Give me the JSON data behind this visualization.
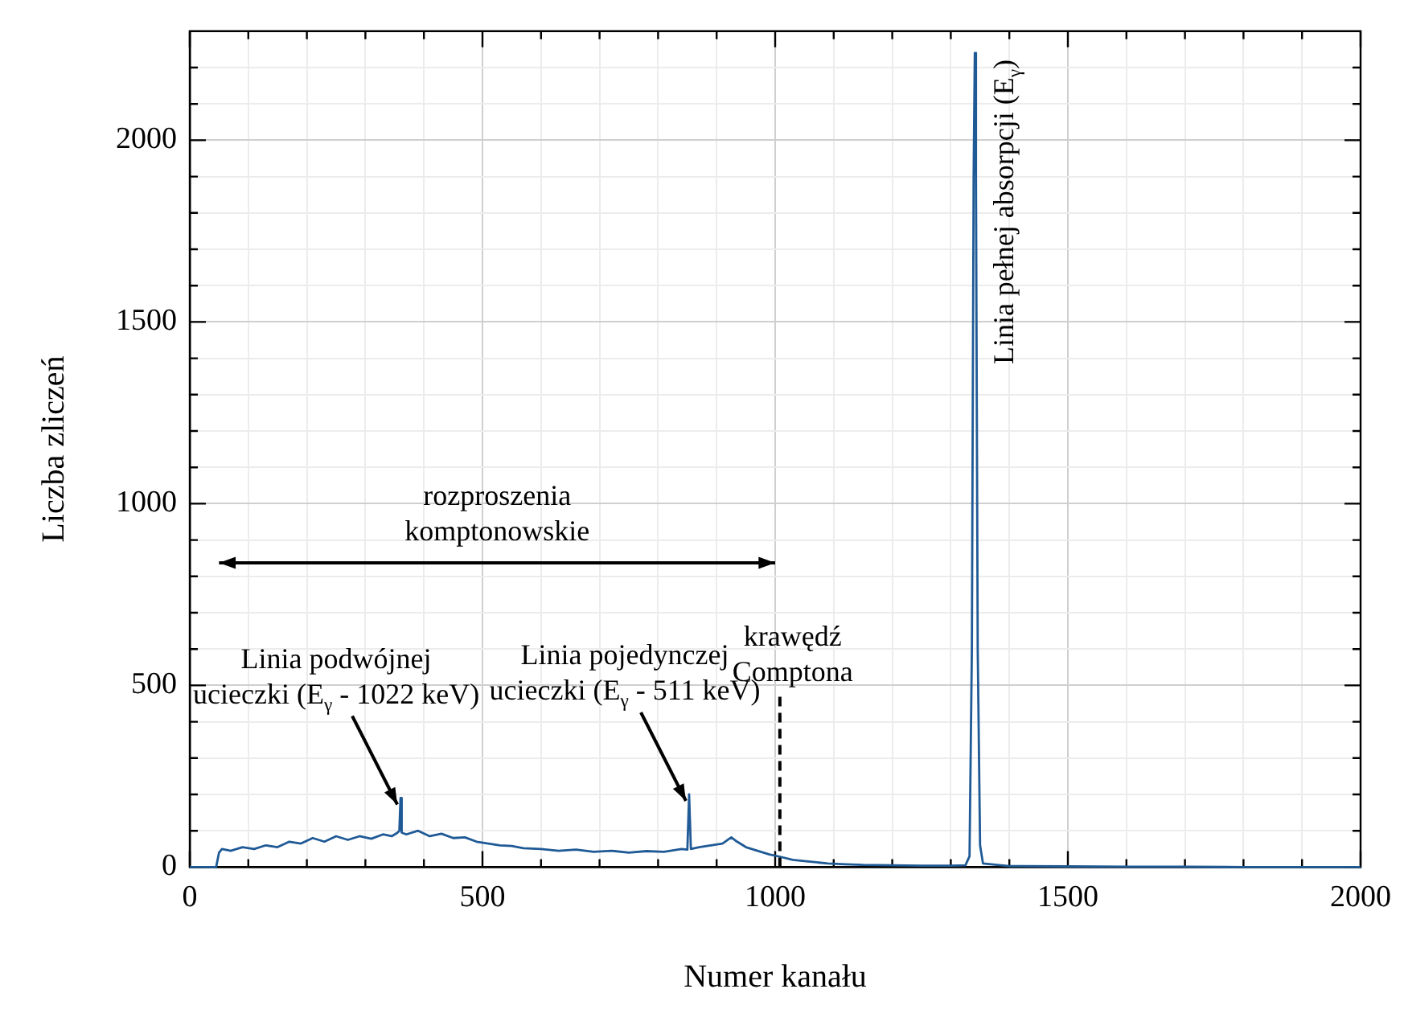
{
  "chart_data": {
    "type": "line",
    "xlabel": "Numer kanału",
    "ylabel": "Liczba zliczeń",
    "x": [
      0,
      45,
      50,
      55,
      70,
      90,
      110,
      130,
      150,
      170,
      190,
      210,
      230,
      250,
      270,
      290,
      310,
      330,
      345,
      355,
      358,
      360,
      362,
      370,
      390,
      410,
      430,
      450,
      470,
      490,
      510,
      530,
      550,
      570,
      600,
      630,
      660,
      690,
      720,
      750,
      780,
      810,
      840,
      850,
      853,
      856,
      870,
      890,
      910,
      925,
      935,
      950,
      970,
      990,
      1010,
      1030,
      1060,
      1090,
      1120,
      1150,
      1200,
      1250,
      1300,
      1325,
      1332,
      1336,
      1339,
      1341,
      1343,
      1346,
      1350,
      1355,
      1400,
      1500,
      1600,
      1700,
      1800,
      2000
    ],
    "series": [
      {
        "color": "#1f5a96",
        "values": [
          0,
          0,
          40,
          50,
          45,
          55,
          50,
          60,
          55,
          70,
          65,
          80,
          70,
          85,
          75,
          85,
          78,
          90,
          85,
          95,
          100,
          190,
          95,
          90,
          100,
          85,
          92,
          80,
          82,
          70,
          65,
          60,
          58,
          52,
          50,
          45,
          48,
          42,
          45,
          40,
          44,
          42,
          50,
          48,
          200,
          50,
          55,
          60,
          65,
          82,
          70,
          55,
          45,
          35,
          28,
          20,
          15,
          10,
          8,
          6,
          5,
          4,
          4,
          5,
          30,
          600,
          1900,
          2240,
          1900,
          600,
          60,
          10,
          3,
          2,
          1,
          1,
          0,
          0
        ]
      }
    ],
    "xlim": [
      0,
      2000
    ],
    "ylim": [
      0,
      2300
    ],
    "xticks": [
      0,
      {
        "value": 100,
        "label": null
      },
      {
        "value": 200,
        "label": null
      },
      {
        "value": 300,
        "label": null
      },
      {
        "value": 400,
        "label": null
      },
      500,
      {
        "value": 600,
        "label": null
      },
      {
        "value": 700,
        "label": null
      },
      {
        "value": 800,
        "label": null
      },
      {
        "value": 900,
        "label": null
      },
      1000,
      {
        "value": 1100,
        "label": null
      },
      {
        "value": 1200,
        "label": null
      },
      {
        "value": 1300,
        "label": null
      },
      {
        "value": 1400,
        "label": null
      },
      1500,
      {
        "value": 1600,
        "label": null
      },
      {
        "value": 1700,
        "label": null
      },
      {
        "value": 1800,
        "label": null
      },
      {
        "value": 1900,
        "label": null
      },
      2000
    ],
    "yticks": [
      0,
      {
        "value": 100,
        "label": null
      },
      {
        "value": 200,
        "label": null
      },
      {
        "value": 300,
        "label": null
      },
      {
        "value": 400,
        "label": null
      },
      500,
      {
        "value": 600,
        "label": null
      },
      {
        "value": 700,
        "label": null
      },
      {
        "value": 800,
        "label": null
      },
      {
        "value": 900,
        "label": null
      },
      1000,
      {
        "value": 1100,
        "label": null
      },
      {
        "value": 1200,
        "label": null
      },
      {
        "value": 1300,
        "label": null
      },
      {
        "value": 1400,
        "label": null
      },
      1500,
      {
        "value": 1600,
        "label": null
      },
      {
        "value": 1700,
        "label": null
      },
      {
        "value": 1800,
        "label": null
      },
      {
        "value": 1900,
        "label": null
      },
      2000,
      {
        "value": 2100,
        "label": null
      },
      {
        "value": 2200,
        "label": null
      }
    ],
    "grid": true,
    "legend": false,
    "marker": "none",
    "line_style": "solid",
    "ref_lines": [
      {
        "axis": "x",
        "value": 1008,
        "label": "krawędź\nComptona",
        "line_style": "dashed",
        "color": "#000000"
      }
    ],
    "annotations": [
      "rozproszenia\nkomptonowskie",
      {
        "text": "Linia podwójnej\nucieczki (E$_{γ}$ - 1022 keV)",
        "x": 360,
        "y": 190
      },
      {
        "text": "Linia pojedynczej\nucieczki (E$_{γ}$ - 511 keV)",
        "x": 853,
        "y": 200
      },
      {
        "text": "Linia pełnej absorpcji (E$_{γ}$)",
        "x": 1341,
        "y": 2240
      }
    ]
  }
}
